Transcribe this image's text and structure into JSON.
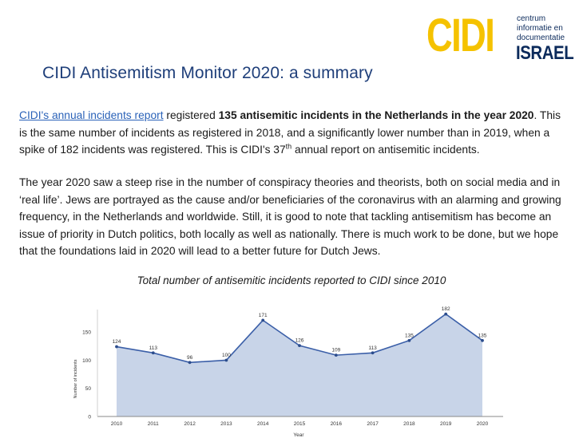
{
  "logo": {
    "brand": "CIDI",
    "line1": "centrum",
    "line2": "informatie en",
    "line3": "documentatie",
    "sub": "ISRAEL"
  },
  "title": "CIDI Antisemitism Monitor 2020: a summary",
  "para1": {
    "link": "CIDI's annual incidents report",
    "t1": " registered ",
    "bold": "135 antisemitic incidents in the Netherlands in the year 2020",
    "t2": ". This is the same number of incidents as registered in 2018, and a significantly lower number than in 2019, when a spike of 182 incidents was registered. This is CIDI's 37",
    "sup": "th",
    "t3": " annual report on antisemitic incidents."
  },
  "para2": "The year 2020 saw a steep rise in the number of conspiracy theories and theorists, both on social media and in ‘real life’. Jews are portrayed as the cause and/or beneficiaries of the coronavirus with an alarming and growing frequency, in the Netherlands and worldwide. Still, it is good to note that tackling antisemitism has become an issue of priority in Dutch politics, both locally as well as nationally. There is much work to be done, but we hope that the foundations laid in 2020 will lead to a better future for Dutch Jews.",
  "chart_title": "Total number of antisemitic incidents reported to CIDI since 2010",
  "chart_data": {
    "type": "area",
    "title": "Total number of antisemitic incidents reported to CIDI since 2010",
    "xlabel": "Year",
    "ylabel": "Number of incidents",
    "categories": [
      "2010",
      "2011",
      "2012",
      "2013",
      "2014",
      "2015",
      "2016",
      "2017",
      "2018",
      "2019",
      "2020"
    ],
    "values": [
      124,
      113,
      96,
      100,
      171,
      126,
      109,
      113,
      135,
      182,
      135
    ],
    "yticks": [
      0,
      50,
      100,
      150
    ],
    "ylim": [
      0,
      190
    ],
    "grid": false,
    "colors": {
      "fill": "#c8d4e8",
      "line": "#3b5fa8",
      "marker": "#2b4c8c"
    }
  }
}
